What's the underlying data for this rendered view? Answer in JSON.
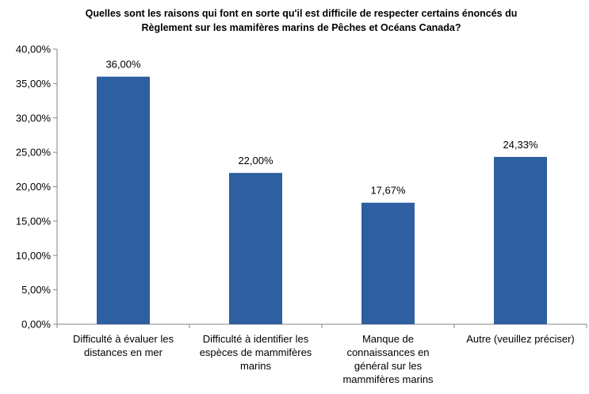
{
  "chart_data": {
    "type": "bar",
    "title_lines": [
      "Quelles sont les raisons qui font en sorte qu'il est difficile de respecter certains énoncés du",
      "Règlement sur les mamifères marins de Pêches et Océans Canada?"
    ],
    "categories": [
      [
        "Difficulté à évaluer les",
        "distances en mer"
      ],
      [
        "Difficulté à identifier les",
        "espèces de mammifères",
        "marins"
      ],
      [
        "Manque de",
        "connaissances en",
        "général sur les",
        "mammifères marins"
      ],
      [
        "Autre (veuillez préciser)"
      ]
    ],
    "values": [
      36.0,
      22.0,
      17.67,
      24.33
    ],
    "value_labels": [
      "36,00%",
      "22,00%",
      "17,67%",
      "24,33%"
    ],
    "ylim": [
      0,
      40
    ],
    "yticks": [
      "0,00%",
      "5,00%",
      "10,00%",
      "15,00%",
      "20,00%",
      "25,00%",
      "30,00%",
      "35,00%",
      "40,00%"
    ],
    "bar_color": "#2E5FA0",
    "axis_color": "#868686",
    "xlabel": "",
    "ylabel": "",
    "grid": false,
    "legend": "none"
  }
}
